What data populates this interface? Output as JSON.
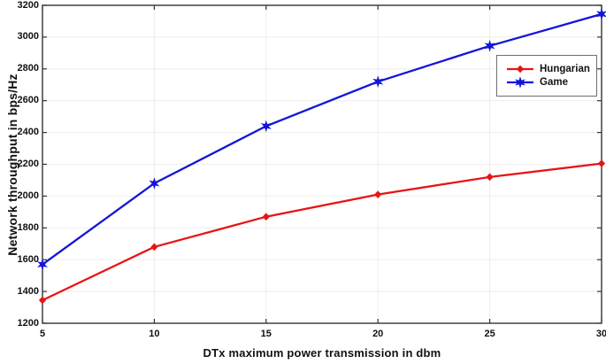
{
  "figure": {
    "background": "#ffffff",
    "grid_color": "#ededed",
    "axis_color": "#333333",
    "text_color": "#111111"
  },
  "chart_data": {
    "type": "line",
    "title": "",
    "xlabel": "DTx maximum power transmission in dbm",
    "ylabel": "Network throughput in bps/Hz",
    "x": [
      5,
      10,
      15,
      20,
      25,
      30
    ],
    "xticks": [
      "5",
      "10",
      "15",
      "20",
      "25",
      "30"
    ],
    "yticks": [
      "1200",
      "1400",
      "1600",
      "1800",
      "2000",
      "2200",
      "2400",
      "2600",
      "2800",
      "3000",
      "3200"
    ],
    "xlim": [
      5,
      30
    ],
    "ylim": [
      1200,
      3200
    ],
    "grid": true,
    "legend_position": "upper-right",
    "series": [
      {
        "name": "Hungarian",
        "color": "#e81414",
        "marker": "diamond",
        "values": [
          1345,
          1680,
          1870,
          2010,
          2120,
          2205
        ]
      },
      {
        "name": "Game",
        "color": "#1414d8",
        "marker": "star",
        "values": [
          1570,
          2080,
          2440,
          2720,
          2945,
          3145
        ]
      }
    ]
  }
}
